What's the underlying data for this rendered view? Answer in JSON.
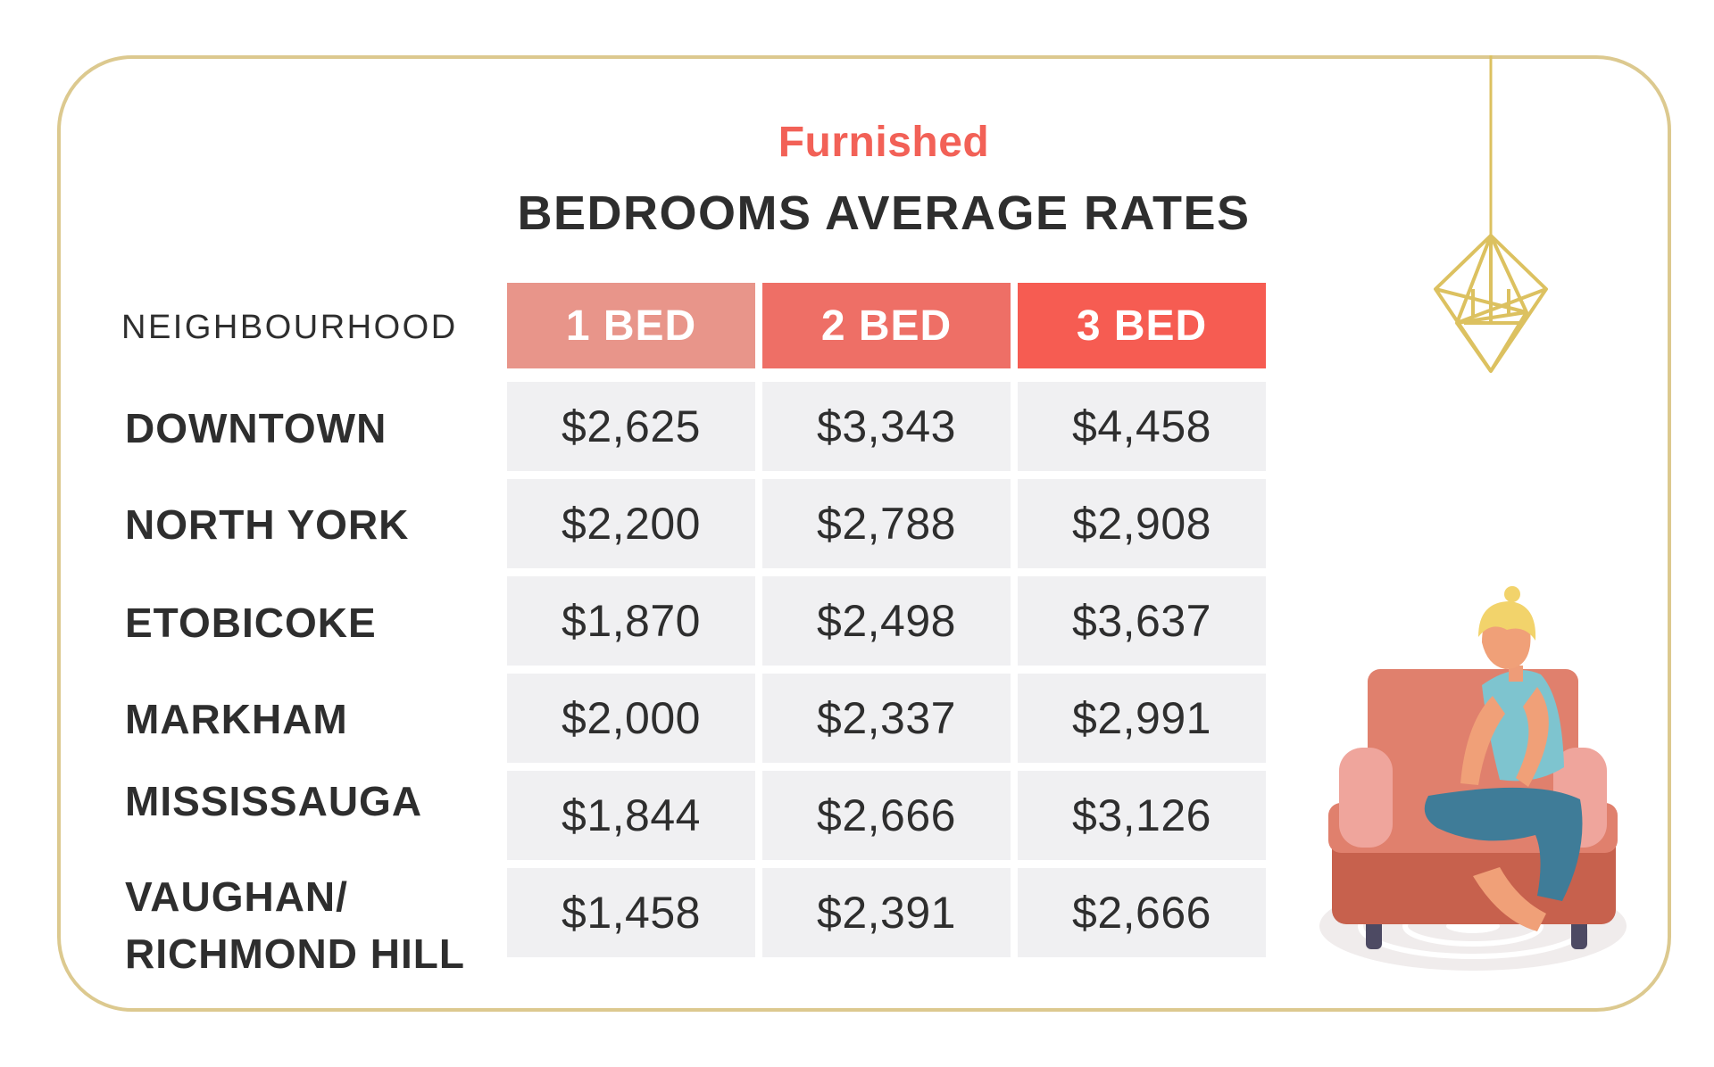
{
  "chart_data": {
    "type": "table",
    "subtitle": "Furnished",
    "title": "BEDROOMS AVERAGE RATES",
    "row_header": "NEIGHBOURHOOD",
    "columns": [
      "1 BED",
      "2 BED",
      "3 BED"
    ],
    "rows": [
      {
        "name": "DOWNTOWN",
        "values": [
          "$2,625",
          "$3,343",
          "$4,458"
        ]
      },
      {
        "name": "NORTH YORK",
        "values": [
          "$2,200",
          "$2,788",
          "$2,908"
        ]
      },
      {
        "name": "ETOBICOKE",
        "values": [
          "$1,870",
          "$2,498",
          "$3,637"
        ]
      },
      {
        "name": "MARKHAM",
        "values": [
          "$2,000",
          "$2,337",
          "$2,991"
        ]
      },
      {
        "name": "MISSISSAUGA",
        "values": [
          "$1,844",
          "$2,666",
          "$3,126"
        ]
      },
      {
        "name": "VAUGHAN/\nRICHMOND HILL",
        "values": [
          "$1,458",
          "$2,391",
          "$2,666"
        ]
      }
    ],
    "header_colors": [
      "#e8958a",
      "#ee6f66",
      "#f65c52"
    ],
    "accent_color": "#f26157",
    "border_color": "#dcc98f"
  },
  "illustrations": {
    "chandelier": "chandelier-icon",
    "person_on_sofa": "person-on-sofa-illustration"
  }
}
